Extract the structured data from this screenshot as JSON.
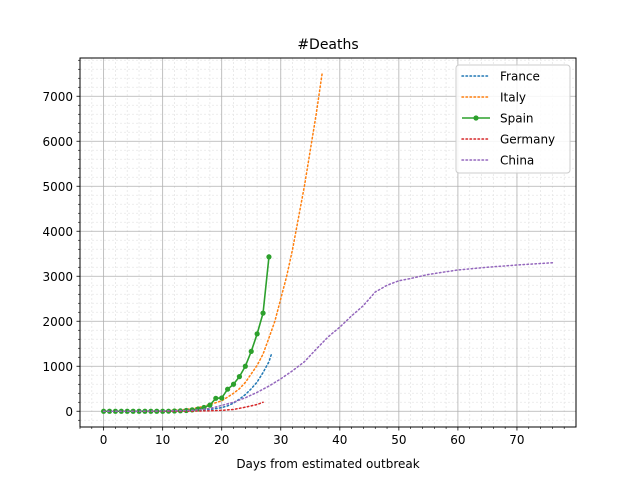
{
  "chart_data": {
    "type": "line",
    "title": "#Deaths",
    "xlabel": "Days from estimated outbreak",
    "ylabel": "",
    "xlim": [
      -4,
      80
    ],
    "ylim": [
      -350,
      7850
    ],
    "xticks": [
      0,
      10,
      20,
      30,
      40,
      50,
      60,
      70
    ],
    "yticks": [
      0,
      1000,
      2000,
      3000,
      4000,
      5000,
      6000,
      7000
    ],
    "grid": true,
    "legend_position": "top-right",
    "series": [
      {
        "name": "France",
        "color": "#1f77b4",
        "style": "dotted",
        "marker": false,
        "x": [
          0,
          2,
          4,
          6,
          8,
          10,
          12,
          14,
          16,
          18,
          20,
          21,
          22,
          23,
          24,
          25,
          26,
          27,
          28,
          28.5
        ],
        "y": [
          0,
          0,
          0,
          0,
          0,
          2,
          5,
          10,
          20,
          40,
          80,
          120,
          180,
          270,
          370,
          500,
          650,
          860,
          1100,
          1300
        ]
      },
      {
        "name": "Italy",
        "color": "#ff7f0e",
        "style": "dotted",
        "marker": false,
        "x": [
          0,
          4,
          8,
          10,
          12,
          14,
          16,
          18,
          20,
          22,
          23,
          24,
          25,
          26,
          27,
          28,
          29,
          30,
          31,
          32,
          33,
          34,
          35,
          36,
          37
        ],
        "y": [
          0,
          0,
          2,
          7,
          20,
          40,
          80,
          150,
          230,
          400,
          500,
          640,
          830,
          1020,
          1270,
          1630,
          2000,
          2500,
          3000,
          3600,
          4300,
          5000,
          5800,
          6600,
          7500
        ]
      },
      {
        "name": "Spain",
        "color": "#2ca02c",
        "style": "solid",
        "marker": true,
        "x": [
          0,
          1,
          2,
          3,
          4,
          5,
          6,
          7,
          8,
          9,
          10,
          11,
          12,
          13,
          14,
          15,
          16,
          17,
          18,
          19,
          20,
          21,
          22,
          23,
          24,
          25,
          26,
          27,
          28
        ],
        "y": [
          0,
          0,
          0,
          0,
          0,
          0,
          0,
          0,
          0,
          0,
          0,
          1,
          5,
          10,
          17,
          30,
          50,
          85,
          136,
          288,
          295,
          490,
          600,
          770,
          1000,
          1330,
          1720,
          2180,
          3430
        ]
      },
      {
        "name": "Germany",
        "color": "#d62728",
        "style": "dotted",
        "marker": false,
        "x": [
          0,
          6,
          10,
          14,
          16,
          18,
          20,
          22,
          24,
          26,
          27
        ],
        "y": [
          0,
          0,
          0,
          2,
          5,
          10,
          20,
          40,
          90,
          150,
          200
        ]
      },
      {
        "name": "China",
        "color": "#9467bd",
        "style": "dotted",
        "marker": false,
        "x": [
          0,
          5,
          10,
          15,
          18,
          20,
          22,
          24,
          26,
          28,
          30,
          32,
          34,
          36,
          38,
          40,
          42,
          44,
          46,
          48,
          50,
          52,
          55,
          60,
          65,
          70,
          76
        ],
        "y": [
          0,
          0,
          5,
          20,
          60,
          130,
          200,
          300,
          420,
          560,
          720,
          900,
          1100,
          1380,
          1650,
          1870,
          2120,
          2350,
          2650,
          2800,
          2900,
          2950,
          3040,
          3140,
          3200,
          3250,
          3300
        ]
      }
    ]
  }
}
